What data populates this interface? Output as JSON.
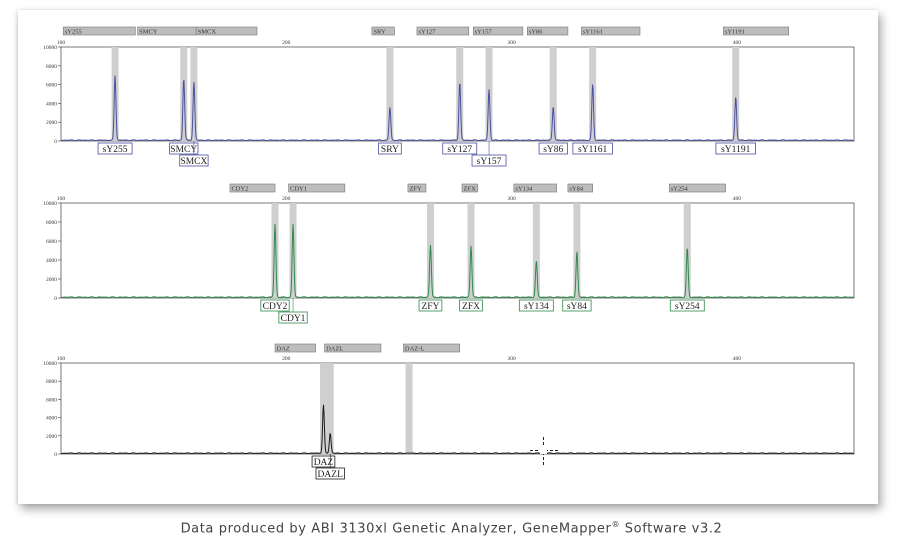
{
  "caption": {
    "text": "Data produced by ABI 3130xl Genetic Analyzer, GeneMapper",
    "mark": "®",
    "suffix": " Software v3.2"
  },
  "axis": {
    "x_ticks": [
      {
        "value": 100,
        "label": "100"
      },
      {
        "value": 200,
        "label": "200"
      },
      {
        "value": 300,
        "label": "300"
      },
      {
        "value": 400,
        "label": "400"
      }
    ],
    "y_ticks": [
      {
        "value": 0,
        "label": "0"
      },
      {
        "value": 2000,
        "label": "2000"
      },
      {
        "value": 4000,
        "label": "4000"
      },
      {
        "value": 6000,
        "label": "6000"
      },
      {
        "value": 8000,
        "label": "8000"
      },
      {
        "value": 10000,
        "label": "10000"
      }
    ],
    "xlim": [
      100,
      452
    ],
    "ylim": [
      0,
      10000
    ]
  },
  "chart_data": [
    {
      "type": "line",
      "color": "#4b4fa0",
      "bins": [
        {
          "label": "sY255",
          "start": 101,
          "end": 133
        },
        {
          "label": "SMCY",
          "start": 134,
          "end": 160
        },
        {
          "label": "SMCX",
          "start": 160,
          "end": 187
        },
        {
          "label": "SRY",
          "start": 238,
          "end": 248
        },
        {
          "label": "sY127",
          "start": 258,
          "end": 281
        },
        {
          "label": "sY157",
          "start": 283,
          "end": 305
        },
        {
          "label": "sY86",
          "start": 307,
          "end": 325
        },
        {
          "label": "sY1161",
          "start": 331,
          "end": 357
        },
        {
          "label": "sY1191",
          "start": 394,
          "end": 423
        }
      ],
      "peaks": [
        {
          "label": "sY255",
          "x": 124,
          "height": 6900,
          "label_row": 0
        },
        {
          "label": "SMCY",
          "x": 154.5,
          "height": 6600,
          "label_row": 0
        },
        {
          "label": "SMCX",
          "x": 159,
          "height": 6200,
          "label_row": 1
        },
        {
          "label": "SRY",
          "x": 246,
          "height": 3500,
          "label_row": 0
        },
        {
          "label": "sY127",
          "x": 277,
          "height": 6200,
          "label_row": 0
        },
        {
          "label": "sY157",
          "x": 290,
          "height": 5400,
          "label_row": 1
        },
        {
          "label": "sY86",
          "x": 318.5,
          "height": 3600,
          "label_row": 0
        },
        {
          "label": "sY1161",
          "x": 336,
          "height": 6000,
          "label_row": 0
        },
        {
          "label": "sY1191",
          "x": 399.5,
          "height": 4600,
          "label_row": 0
        }
      ]
    },
    {
      "type": "line",
      "color": "#2e8a4a",
      "bins": [
        {
          "label": "CDY2",
          "start": 175,
          "end": 195
        },
        {
          "label": "CDY1",
          "start": 201,
          "end": 226
        },
        {
          "label": "ZFY",
          "start": 254,
          "end": 262
        },
        {
          "label": "ZFX",
          "start": 278,
          "end": 285
        },
        {
          "label": "sY134",
          "start": 301,
          "end": 320
        },
        {
          "label": "sY84",
          "start": 325,
          "end": 336
        },
        {
          "label": "sY254",
          "start": 370,
          "end": 395
        }
      ],
      "peaks": [
        {
          "label": "CDY2",
          "x": 195,
          "height": 7700,
          "label_row": 0
        },
        {
          "label": "CDY1",
          "x": 203,
          "height": 7700,
          "label_row": 1
        },
        {
          "label": "ZFY",
          "x": 264,
          "height": 5500,
          "label_row": 0
        },
        {
          "label": "ZFX",
          "x": 282,
          "height": 5400,
          "label_row": 0
        },
        {
          "label": "sY134",
          "x": 311,
          "height": 3800,
          "label_row": 0
        },
        {
          "label": "sY84",
          "x": 329,
          "height": 4800,
          "label_row": 0
        },
        {
          "label": "sY254",
          "x": 378,
          "height": 5200,
          "label_row": 0
        }
      ]
    },
    {
      "type": "line",
      "color": "#1a1a1a",
      "bins": [
        {
          "label": "DAZ",
          "start": 195,
          "end": 213
        },
        {
          "label": "DAZL",
          "start": 217,
          "end": 242
        },
        {
          "label": "DAZ-L",
          "start": 252,
          "end": 277
        }
      ],
      "markers_only": [
        254.5
      ],
      "peaks": [
        {
          "label": "DAZ",
          "x": 216.5,
          "height": 5300,
          "label_row": 0
        },
        {
          "label": "DAZL",
          "x": 219.5,
          "height": 2200,
          "label_row": 1
        }
      ]
    }
  ]
}
